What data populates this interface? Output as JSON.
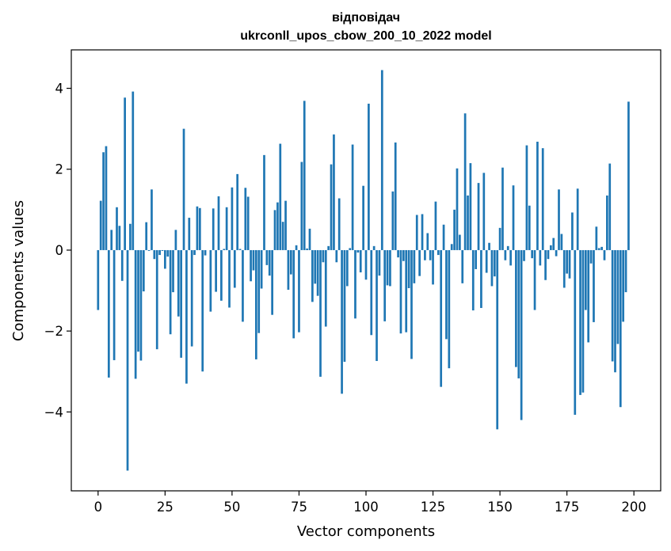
{
  "chart_data": {
    "type": "bar",
    "title_lines": [
      "відповідач",
      "ukrconll_upos_cbow_200_10_2022 model"
    ],
    "xlabel": "Vector components",
    "ylabel": "Components values",
    "xlim": [
      -10,
      210
    ],
    "ylim": [
      -5.95,
      4.95
    ],
    "xticks": [
      0,
      25,
      50,
      75,
      100,
      125,
      150,
      175,
      200
    ],
    "yticks": [
      -4,
      -2,
      0,
      2,
      4
    ],
    "ytick_labels": [
      "−4",
      "−2",
      "0",
      "2",
      "4"
    ],
    "bar_color": "#1f77b4",
    "grid": false,
    "legend": "none",
    "values": [
      -1.48,
      1.22,
      2.42,
      2.57,
      -3.15,
      0.5,
      -2.72,
      1.06,
      0.6,
      -0.76,
      3.77,
      -5.45,
      0.65,
      3.92,
      -3.18,
      -2.51,
      -2.73,
      -1.02,
      0.69,
      -0.02,
      1.5,
      -0.22,
      -2.45,
      -0.12,
      -0.02,
      -0.46,
      -0.16,
      -2.08,
      -1.04,
      0.5,
      -1.64,
      -2.66,
      3.0,
      -3.3,
      0.8,
      -2.38,
      -0.12,
      1.08,
      1.04,
      -3.0,
      -0.13,
      0.0,
      -1.52,
      1.03,
      -1.03,
      1.33,
      -1.25,
      0.03,
      1.06,
      -1.42,
      1.55,
      -0.93,
      1.88,
      0.03,
      -1.77,
      1.54,
      1.32,
      -0.77,
      -0.5,
      -2.7,
      -2.05,
      -0.95,
      2.35,
      -0.37,
      -0.63,
      -1.6,
      0.99,
      1.18,
      2.63,
      0.7,
      1.22,
      -0.98,
      -0.6,
      -2.18,
      0.12,
      -2.03,
      2.18,
      3.69,
      0.04,
      0.53,
      -1.28,
      -0.83,
      -1.13,
      -3.13,
      -0.3,
      -1.89,
      0.1,
      2.12,
      2.86,
      -0.3,
      1.28,
      -3.55,
      -2.76,
      -0.89,
      0.05,
      2.61,
      -1.69,
      -0.06,
      -0.55,
      1.59,
      -0.73,
      3.62,
      -2.1,
      0.1,
      -2.74,
      -0.63,
      4.45,
      -1.76,
      -0.87,
      -0.89,
      1.45,
      2.66,
      -0.18,
      -2.06,
      -0.27,
      -2.03,
      -0.94,
      -2.69,
      -0.82,
      0.87,
      -0.64,
      0.89,
      -0.25,
      0.42,
      -0.25,
      -0.85,
      1.2,
      -0.12,
      -3.38,
      0.63,
      -2.2,
      -2.92,
      0.15,
      1.0,
      2.02,
      0.38,
      -0.82,
      3.38,
      1.35,
      2.15,
      -1.49,
      -0.47,
      1.66,
      -1.43,
      1.91,
      -0.56,
      0.18,
      -0.89,
      -0.65,
      -4.43,
      0.55,
      2.04,
      -0.25,
      0.1,
      -0.38,
      1.6,
      -2.89,
      -3.17,
      -4.2,
      -0.27,
      2.59,
      1.1,
      -0.2,
      -1.48,
      2.68,
      -0.38,
      2.52,
      -0.74,
      -0.22,
      0.12,
      0.3,
      -0.15,
      1.5,
      0.4,
      -0.93,
      -0.58,
      -0.7,
      0.93,
      -4.07,
      1.52,
      -3.58,
      -3.52,
      -1.48,
      -2.28,
      -0.33,
      -1.78,
      0.58,
      0.05,
      0.08,
      -0.25,
      1.35,
      2.14,
      -2.75,
      -3.02,
      -2.32,
      -3.88,
      -1.77,
      -1.04,
      3.67
    ]
  }
}
